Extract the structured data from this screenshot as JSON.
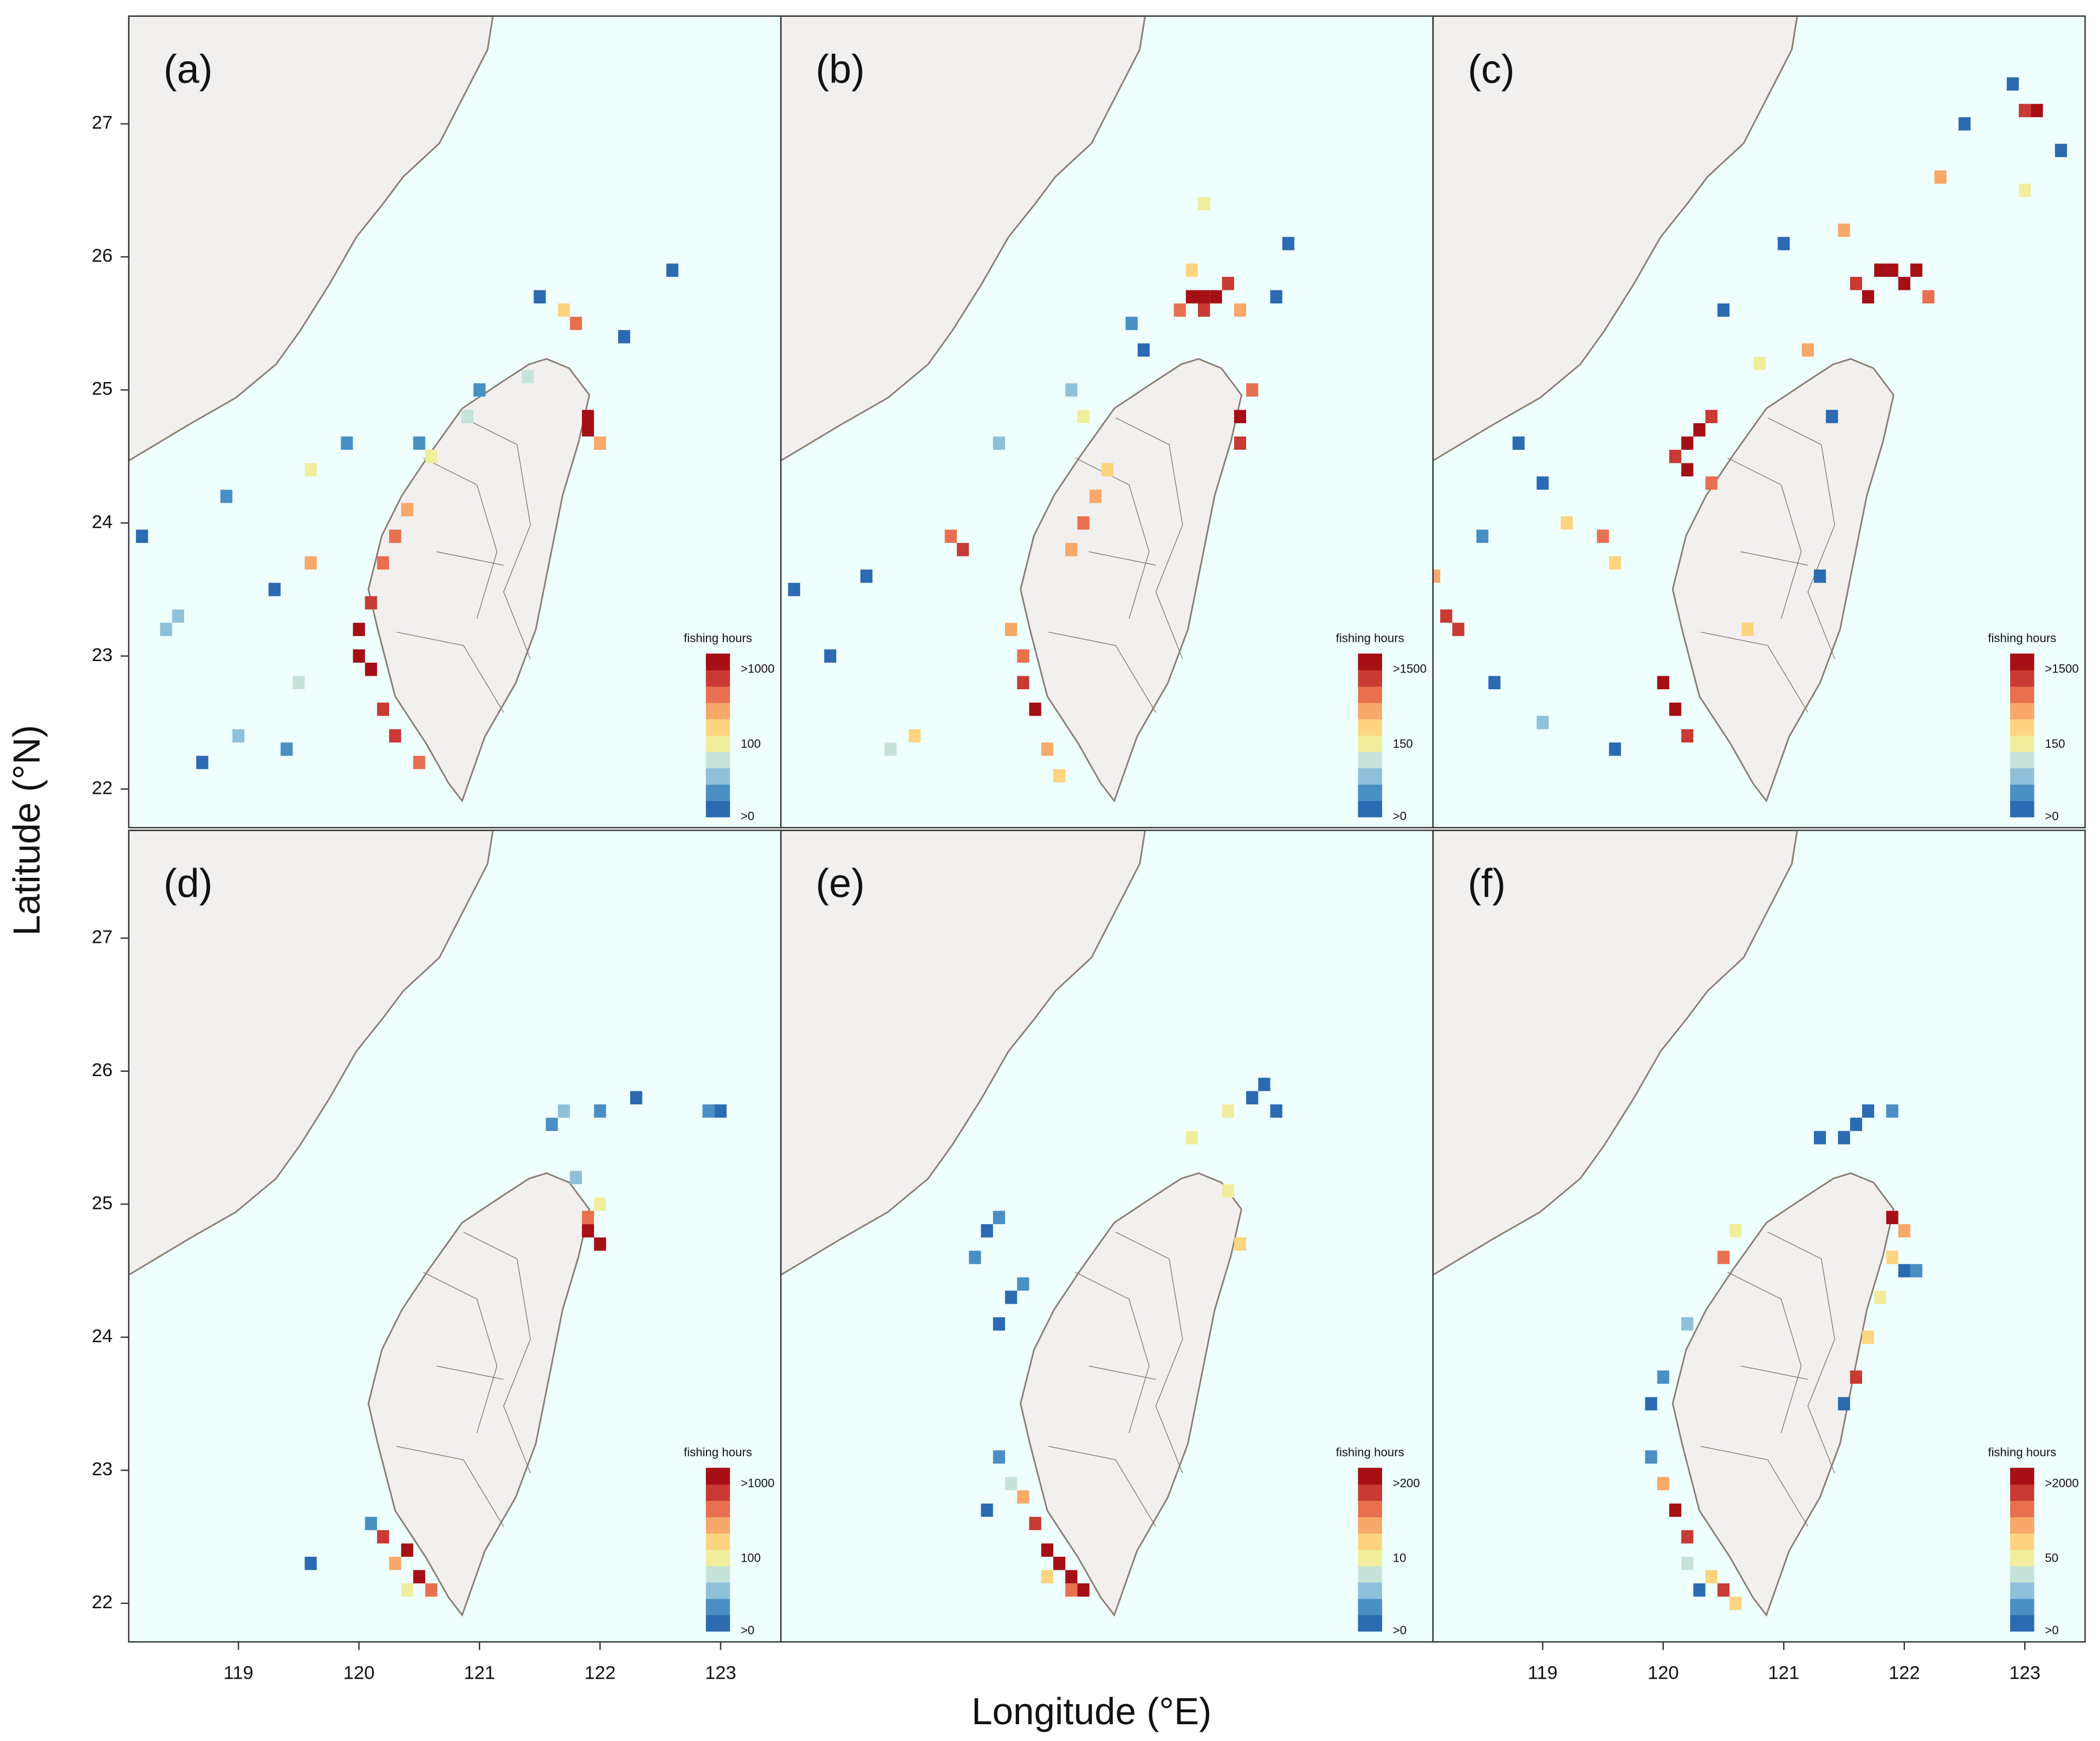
{
  "xlabel": "Longitude (°E)",
  "ylabel": "Latitude (°N)",
  "xlim": [
    118.09,
    123.5
  ],
  "ylim": [
    21.71,
    27.81
  ],
  "xticks": [
    119,
    120,
    121,
    122,
    123
  ],
  "yticks": [
    22,
    23,
    24,
    25,
    26,
    27
  ],
  "colors": [
    "#2c6ab2",
    "#4a8fc4",
    "#8fc0da",
    "#c6e3d9",
    "#f0ee9c",
    "#fdd47f",
    "#f8a869",
    "#e8704e",
    "#c83a33",
    "#a50f15"
  ],
  "panels": [
    {
      "label": "(a)",
      "legend": {
        "title": "fishing hours",
        "labels": [
          ">1000",
          "100",
          ">0"
        ]
      },
      "cells": [
        [
          120.0,
          23.0,
          9
        ],
        [
          120.1,
          22.9,
          9
        ],
        [
          120.0,
          23.2,
          9
        ],
        [
          120.1,
          23.4,
          8
        ],
        [
          120.2,
          23.7,
          7
        ],
        [
          120.3,
          23.9,
          7
        ],
        [
          120.4,
          24.1,
          6
        ],
        [
          120.2,
          22.6,
          8
        ],
        [
          120.3,
          22.4,
          8
        ],
        [
          120.5,
          22.2,
          7
        ],
        [
          121.9,
          24.8,
          9
        ],
        [
          121.9,
          24.7,
          9
        ],
        [
          122.0,
          24.6,
          6
        ],
        [
          121.8,
          25.5,
          7
        ],
        [
          121.7,
          25.6,
          5
        ],
        [
          120.6,
          24.5,
          4
        ],
        [
          120.9,
          24.8,
          3
        ],
        [
          119.6,
          23.7,
          6
        ],
        [
          119.3,
          23.5,
          0
        ],
        [
          118.4,
          23.2,
          2
        ],
        [
          118.5,
          23.3,
          2
        ],
        [
          118.7,
          22.2,
          0
        ],
        [
          119.0,
          22.4,
          2
        ],
        [
          119.5,
          22.8,
          3
        ],
        [
          120.5,
          24.6,
          1
        ],
        [
          121.0,
          25.0,
          1
        ],
        [
          121.5,
          25.7,
          0
        ],
        [
          122.2,
          25.4,
          0
        ],
        [
          122.6,
          25.9,
          0
        ],
        [
          118.2,
          23.9,
          0
        ],
        [
          118.9,
          24.2,
          1
        ],
        [
          119.9,
          24.6,
          1
        ],
        [
          119.6,
          24.4,
          4
        ],
        [
          121.4,
          25.1,
          3
        ],
        [
          119.4,
          22.3,
          1
        ]
      ]
    },
    {
      "label": "(b)",
      "legend": {
        "title": "fishing hours",
        "labels": [
          ">1500",
          "150",
          ">0"
        ]
      },
      "cells": [
        [
          121.5,
          25.7,
          9
        ],
        [
          121.6,
          25.7,
          9
        ],
        [
          121.7,
          25.7,
          9
        ],
        [
          121.8,
          25.8,
          8
        ],
        [
          121.6,
          25.6,
          8
        ],
        [
          121.4,
          25.6,
          7
        ],
        [
          121.9,
          25.6,
          6
        ],
        [
          121.5,
          25.9,
          5
        ],
        [
          121.9,
          24.8,
          9
        ],
        [
          121.9,
          24.6,
          8
        ],
        [
          122.0,
          25.0,
          7
        ],
        [
          120.1,
          22.8,
          8
        ],
        [
          120.2,
          22.6,
          9
        ],
        [
          120.1,
          23.0,
          7
        ],
        [
          120.0,
          23.2,
          6
        ],
        [
          120.3,
          22.3,
          6
        ],
        [
          120.4,
          22.1,
          5
        ],
        [
          120.6,
          24.0,
          7
        ],
        [
          120.7,
          24.2,
          6
        ],
        [
          120.8,
          24.4,
          5
        ],
        [
          120.5,
          23.8,
          6
        ],
        [
          119.6,
          23.8,
          8
        ],
        [
          119.5,
          23.9,
          7
        ],
        [
          119.2,
          22.4,
          5
        ],
        [
          119.0,
          22.3,
          3
        ],
        [
          120.6,
          24.8,
          4
        ],
        [
          120.5,
          25.0,
          2
        ],
        [
          121.1,
          25.3,
          0
        ],
        [
          121.0,
          25.5,
          1
        ],
        [
          122.3,
          26.1,
          0
        ],
        [
          122.2,
          25.7,
          0
        ],
        [
          121.6,
          26.4,
          4
        ],
        [
          118.2,
          23.5,
          0
        ],
        [
          118.5,
          23.0,
          0
        ],
        [
          118.8,
          23.6,
          0
        ],
        [
          119.9,
          24.6,
          2
        ]
      ]
    },
    {
      "label": "(c)",
      "legend": {
        "title": "fishing hours",
        "labels": [
          ">1500",
          "150",
          ">0"
        ]
      },
      "cells": [
        [
          121.8,
          25.9,
          9
        ],
        [
          121.9,
          25.9,
          9
        ],
        [
          122.0,
          25.8,
          9
        ],
        [
          122.1,
          25.9,
          9
        ],
        [
          121.7,
          25.7,
          9
        ],
        [
          121.6,
          25.8,
          8
        ],
        [
          122.2,
          25.7,
          7
        ],
        [
          121.5,
          26.2,
          6
        ],
        [
          120.2,
          24.6,
          9
        ],
        [
          120.3,
          24.7,
          9
        ],
        [
          120.2,
          24.4,
          9
        ],
        [
          120.4,
          24.8,
          8
        ],
        [
          120.1,
          24.5,
          8
        ],
        [
          120.4,
          24.3,
          7
        ],
        [
          118.2,
          23.3,
          8
        ],
        [
          118.3,
          23.2,
          8
        ],
        [
          118.1,
          23.6,
          6
        ],
        [
          120.0,
          22.8,
          9
        ],
        [
          120.1,
          22.6,
          9
        ],
        [
          120.2,
          22.4,
          8
        ],
        [
          119.5,
          23.9,
          7
        ],
        [
          119.6,
          23.7,
          5
        ],
        [
          119.2,
          24.0,
          5
        ],
        [
          121.2,
          25.3,
          6
        ],
        [
          120.8,
          25.2,
          4
        ],
        [
          120.7,
          23.2,
          5
        ],
        [
          122.3,
          26.6,
          6
        ],
        [
          123.0,
          26.5,
          4
        ],
        [
          123.1,
          27.1,
          9
        ],
        [
          123.0,
          27.1,
          8
        ],
        [
          122.9,
          27.3,
          0
        ],
        [
          123.3,
          26.8,
          0
        ],
        [
          122.5,
          27.0,
          0
        ],
        [
          121.0,
          26.1,
          0
        ],
        [
          120.5,
          25.6,
          0
        ],
        [
          119.0,
          24.3,
          0
        ],
        [
          118.5,
          23.9,
          1
        ],
        [
          118.6,
          22.8,
          0
        ],
        [
          119.0,
          22.5,
          2
        ],
        [
          119.6,
          22.3,
          0
        ],
        [
          118.8,
          24.6,
          0
        ],
        [
          121.4,
          24.8,
          0
        ],
        [
          121.3,
          23.6,
          0
        ]
      ]
    },
    {
      "label": "(d)",
      "legend": {
        "title": "fishing hours",
        "labels": [
          ">1000",
          "100",
          ">0"
        ]
      },
      "cells": [
        [
          121.9,
          24.8,
          9
        ],
        [
          122.0,
          24.7,
          9
        ],
        [
          121.9,
          24.9,
          7
        ],
        [
          122.0,
          25.0,
          4
        ],
        [
          121.8,
          25.2,
          2
        ],
        [
          121.6,
          25.6,
          1
        ],
        [
          121.7,
          25.7,
          2
        ],
        [
          122.0,
          25.7,
          1
        ],
        [
          122.3,
          25.8,
          0
        ],
        [
          122.9,
          25.7,
          1
        ],
        [
          123.0,
          25.7,
          0
        ],
        [
          120.2,
          22.5,
          8
        ],
        [
          120.4,
          22.4,
          9
        ],
        [
          120.3,
          22.3,
          6
        ],
        [
          120.5,
          22.2,
          9
        ],
        [
          120.6,
          22.1,
          7
        ],
        [
          120.1,
          22.6,
          1
        ],
        [
          119.6,
          22.3,
          0
        ],
        [
          120.4,
          22.1,
          4
        ]
      ]
    },
    {
      "label": "(e)",
      "legend": {
        "title": "fishing hours",
        "labels": [
          ">200",
          "10",
          ">0"
        ]
      },
      "cells": [
        [
          120.3,
          22.4,
          9
        ],
        [
          120.4,
          22.3,
          9
        ],
        [
          120.5,
          22.2,
          9
        ],
        [
          120.6,
          22.1,
          9
        ],
        [
          120.2,
          22.6,
          8
        ],
        [
          120.1,
          22.8,
          6
        ],
        [
          120.0,
          22.9,
          3
        ],
        [
          119.9,
          23.1,
          1
        ],
        [
          120.3,
          22.2,
          5
        ],
        [
          120.5,
          22.1,
          7
        ],
        [
          119.8,
          22.7,
          0
        ],
        [
          119.7,
          24.6,
          1
        ],
        [
          119.8,
          24.8,
          0
        ],
        [
          119.9,
          24.9,
          1
        ],
        [
          120.0,
          24.3,
          0
        ],
        [
          120.1,
          24.4,
          1
        ],
        [
          119.9,
          24.1,
          0
        ],
        [
          122.0,
          25.8,
          0
        ],
        [
          122.1,
          25.9,
          0
        ],
        [
          122.2,
          25.7,
          0
        ],
        [
          121.8,
          25.7,
          4
        ],
        [
          121.5,
          25.5,
          4
        ],
        [
          121.9,
          24.7,
          5
        ],
        [
          121.8,
          25.1,
          4
        ]
      ]
    },
    {
      "label": "(f)",
      "legend": {
        "title": "fishing hours",
        "labels": [
          ">2000",
          "50",
          ">0"
        ]
      },
      "cells": [
        [
          121.9,
          24.9,
          9
        ],
        [
          122.0,
          24.8,
          6
        ],
        [
          121.9,
          24.6,
          5
        ],
        [
          122.0,
          24.5,
          0
        ],
        [
          122.1,
          24.5,
          1
        ],
        [
          121.7,
          24.0,
          5
        ],
        [
          121.6,
          23.7,
          8
        ],
        [
          121.5,
          23.5,
          0
        ],
        [
          120.1,
          22.7,
          9
        ],
        [
          120.2,
          22.5,
          8
        ],
        [
          120.0,
          22.9,
          6
        ],
        [
          120.2,
          22.3,
          3
        ],
        [
          120.4,
          22.2,
          5
        ],
        [
          120.5,
          22.1,
          8
        ],
        [
          120.6,
          22.0,
          5
        ],
        [
          120.3,
          22.1,
          0
        ],
        [
          119.9,
          23.1,
          1
        ],
        [
          119.9,
          23.5,
          0
        ],
        [
          120.0,
          23.7,
          1
        ],
        [
          120.2,
          24.1,
          2
        ],
        [
          120.5,
          24.6,
          7
        ],
        [
          120.6,
          24.8,
          4
        ],
        [
          121.6,
          25.6,
          0
        ],
        [
          121.7,
          25.7,
          0
        ],
        [
          121.9,
          25.7,
          1
        ],
        [
          121.5,
          25.5,
          0
        ],
        [
          121.3,
          25.5,
          0
        ],
        [
          121.8,
          24.3,
          4
        ]
      ]
    }
  ]
}
